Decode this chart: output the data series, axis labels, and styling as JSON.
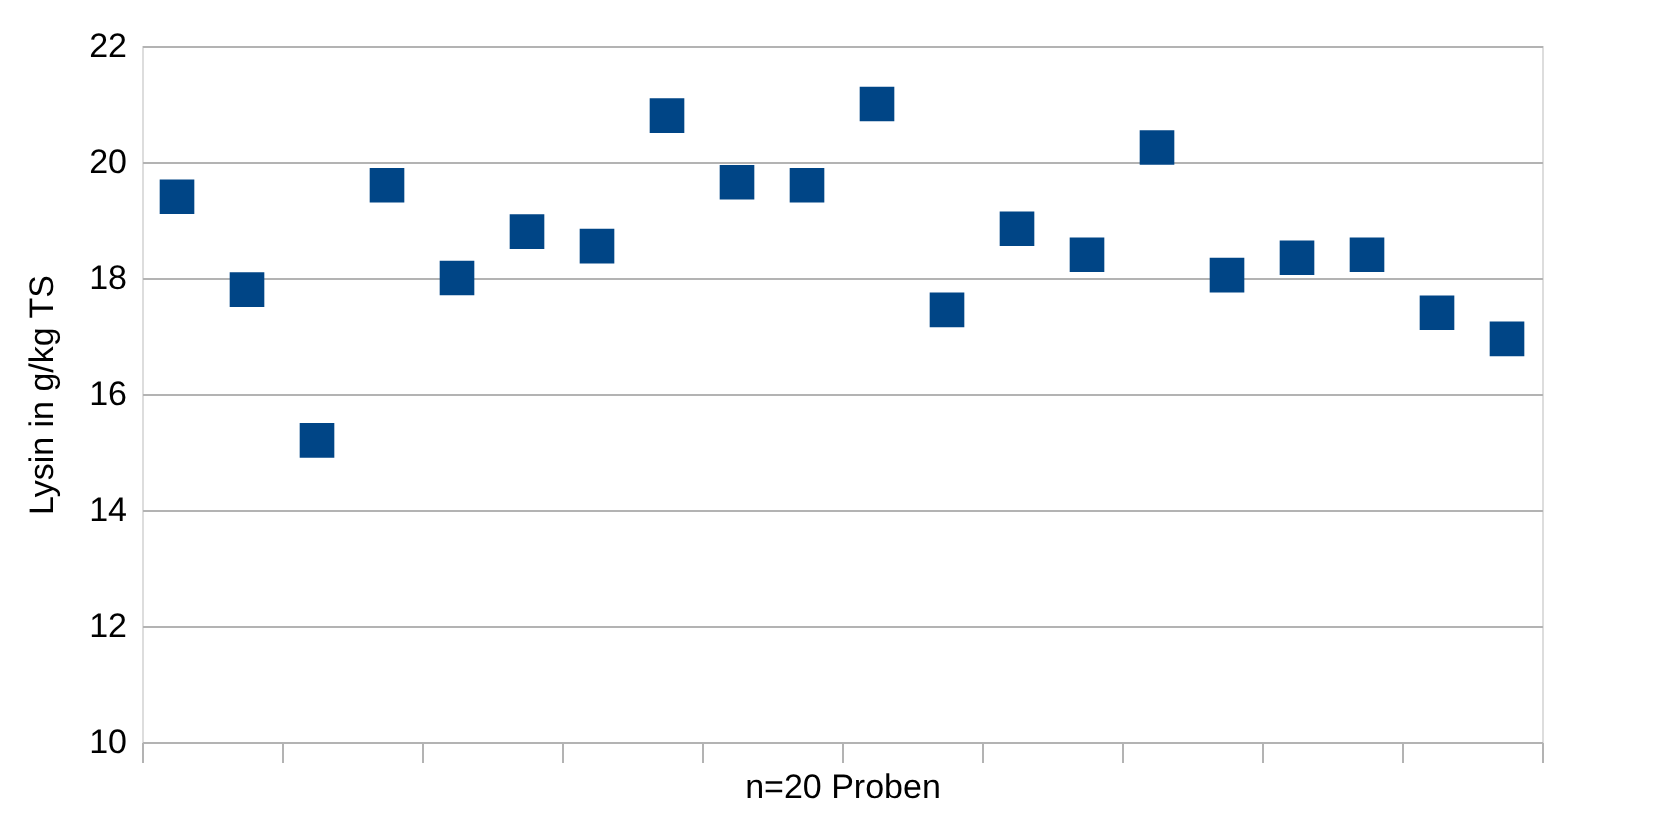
{
  "chart_data": {
    "type": "scatter",
    "xlabel": "n=20 Proben",
    "ylabel": "Lysin in g/kg TS",
    "categories": [
      null,
      null,
      null,
      null,
      null,
      null,
      null,
      null,
      null,
      null,
      null,
      null,
      null,
      null,
      null,
      null,
      null,
      null,
      null,
      null
    ],
    "series": [
      {
        "color": "#004586",
        "values": [
          19.4,
          17.8,
          15.2,
          19.6,
          18.0,
          18.8,
          18.55,
          20.8,
          19.65,
          19.6,
          21.0,
          17.45,
          18.85,
          18.4,
          20.25,
          18.05,
          18.35,
          18.4,
          17.4,
          16.95
        ]
      }
    ],
    "ylim": [
      10,
      22
    ],
    "yticks": [
      10,
      12,
      14,
      16,
      18,
      20,
      22
    ],
    "grid": "y",
    "marker": "square",
    "legend": false,
    "tick_labels": "y"
  }
}
